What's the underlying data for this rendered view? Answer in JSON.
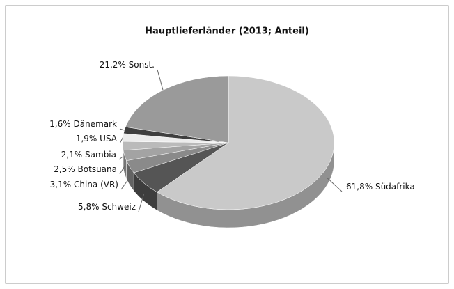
{
  "chart_data": {
    "type": "pie",
    "title": "Hauptlieferländer (2013; Anteil)",
    "categories": [
      "Südafrika",
      "Schweiz",
      "China (VR)",
      "Botsuana",
      "Sambia",
      "USA",
      "Dänemark",
      "Sonst."
    ],
    "values": [
      61.8,
      5.8,
      3.1,
      2.5,
      2.1,
      1.9,
      1.6,
      21.2
    ],
    "value_labels": [
      "61,8%",
      "5,8%",
      "3,1%",
      "2,5%",
      "2,1%",
      "1,9%",
      "1,6%",
      "21,2%"
    ],
    "colors": [
      "#c9c9c9",
      "#555555",
      "#8a8a8a",
      "#a3a3a3",
      "#bababa",
      "#ececec",
      "#3f3f3f",
      "#9a9a9a"
    ]
  }
}
